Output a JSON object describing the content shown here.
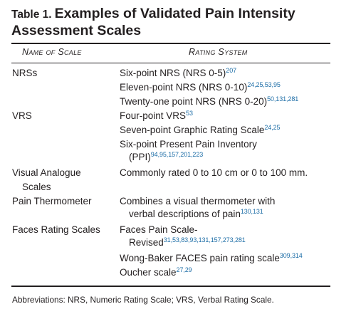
{
  "table": {
    "number": "Table 1.",
    "title_line1": "Examples of Validated Pain Intensity",
    "title_line2": "Assessment Scales",
    "col_name": "Name of Scale",
    "col_rating": "Rating System"
  },
  "rows": {
    "nrs": {
      "label": "NRSs",
      "items": [
        {
          "text": "Six-point NRS (NRS 0-5)",
          "refs": "207"
        },
        {
          "text": "Eleven-point NRS (NRS 0-10)",
          "refs": "24,25,53,95"
        },
        {
          "text": "Twenty-one point NRS (NRS 0-20)",
          "refs": "50,131,281"
        }
      ]
    },
    "vrs": {
      "label": "VRS",
      "items": [
        {
          "text": "Four-point VRS",
          "refs": "53"
        },
        {
          "text": "Seven-point Graphic Rating Scale",
          "refs": "24,25"
        },
        {
          "text": "Six-point Present Pain Inventory",
          "text2": "(PPI)",
          "refs": "94,95,157,201,223"
        }
      ]
    },
    "vas": {
      "label": "Visual Analogue",
      "label2": "Scales",
      "text": "Commonly rated 0 to 10 cm or 0 to 100 mm."
    },
    "thermo": {
      "label": "Pain Thermometer",
      "text": "Combines a visual thermometer with",
      "text2": "verbal descriptions of pain",
      "refs": "130,131"
    },
    "faces": {
      "label": "Faces Rating Scales",
      "items": [
        {
          "text": "Faces Pain Scale-",
          "text2": "Revised",
          "refs": "31,53,83,93,131,157,273,281"
        },
        {
          "text": "Wong-Baker FACES pain rating scale",
          "refs": "309,314"
        },
        {
          "text": "Oucher scale",
          "refs": "27,29"
        }
      ]
    }
  },
  "footnote": "Abbreviations: NRS, Numeric Rating Scale; VRS, Verbal Rating Scale.",
  "colors": {
    "text": "#231f20",
    "reference": "#1e6ea7"
  }
}
